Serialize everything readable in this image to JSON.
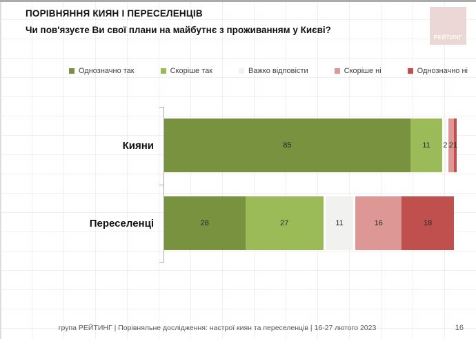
{
  "page": {
    "title": "ПОРІВНЯННЯ КИЯН І ПЕРЕСЕЛЕНЦІВ",
    "subtitle": "Чи пов'язуєте Ви свої плани на майбутнє з проживанням у Києві?",
    "footer_caption": "група РЕЙТИНГ | Порівняльне дослідження: настрої киян та переселенців | 16-27 лютого 2023",
    "page_number": "16"
  },
  "logo": {
    "text": "РЕЙТИНГ",
    "background_color": "#ebd8d6"
  },
  "chart_data": {
    "type": "bar",
    "orientation": "horizontal",
    "stacked": true,
    "title": "Чи пов'язуєте Ви свої плани на майбутнє з проживанням у Києві?",
    "categories": [
      "Кияни",
      "Переселенці"
    ],
    "series": [
      {
        "name": "Однозначно так",
        "color": "#78923f",
        "values": [
          85,
          28
        ]
      },
      {
        "name": "Скоріше так",
        "color": "#9bbb59",
        "values": [
          11,
          27
        ]
      },
      {
        "name": "Важко відповісти",
        "color": "#f1f1ef",
        "values": [
          2,
          11
        ]
      },
      {
        "name": "Скоріше ні",
        "color": "#dd9795",
        "values": [
          2,
          16
        ]
      },
      {
        "name": "Однозначно ні",
        "color": "#c0504d",
        "values": [
          1,
          18
        ]
      }
    ],
    "xlim": [
      0,
      100
    ],
    "value_labels": true,
    "legend_position": "top",
    "axis": {
      "line_color": "#a6a6a6",
      "ticks": "between-categories"
    }
  }
}
